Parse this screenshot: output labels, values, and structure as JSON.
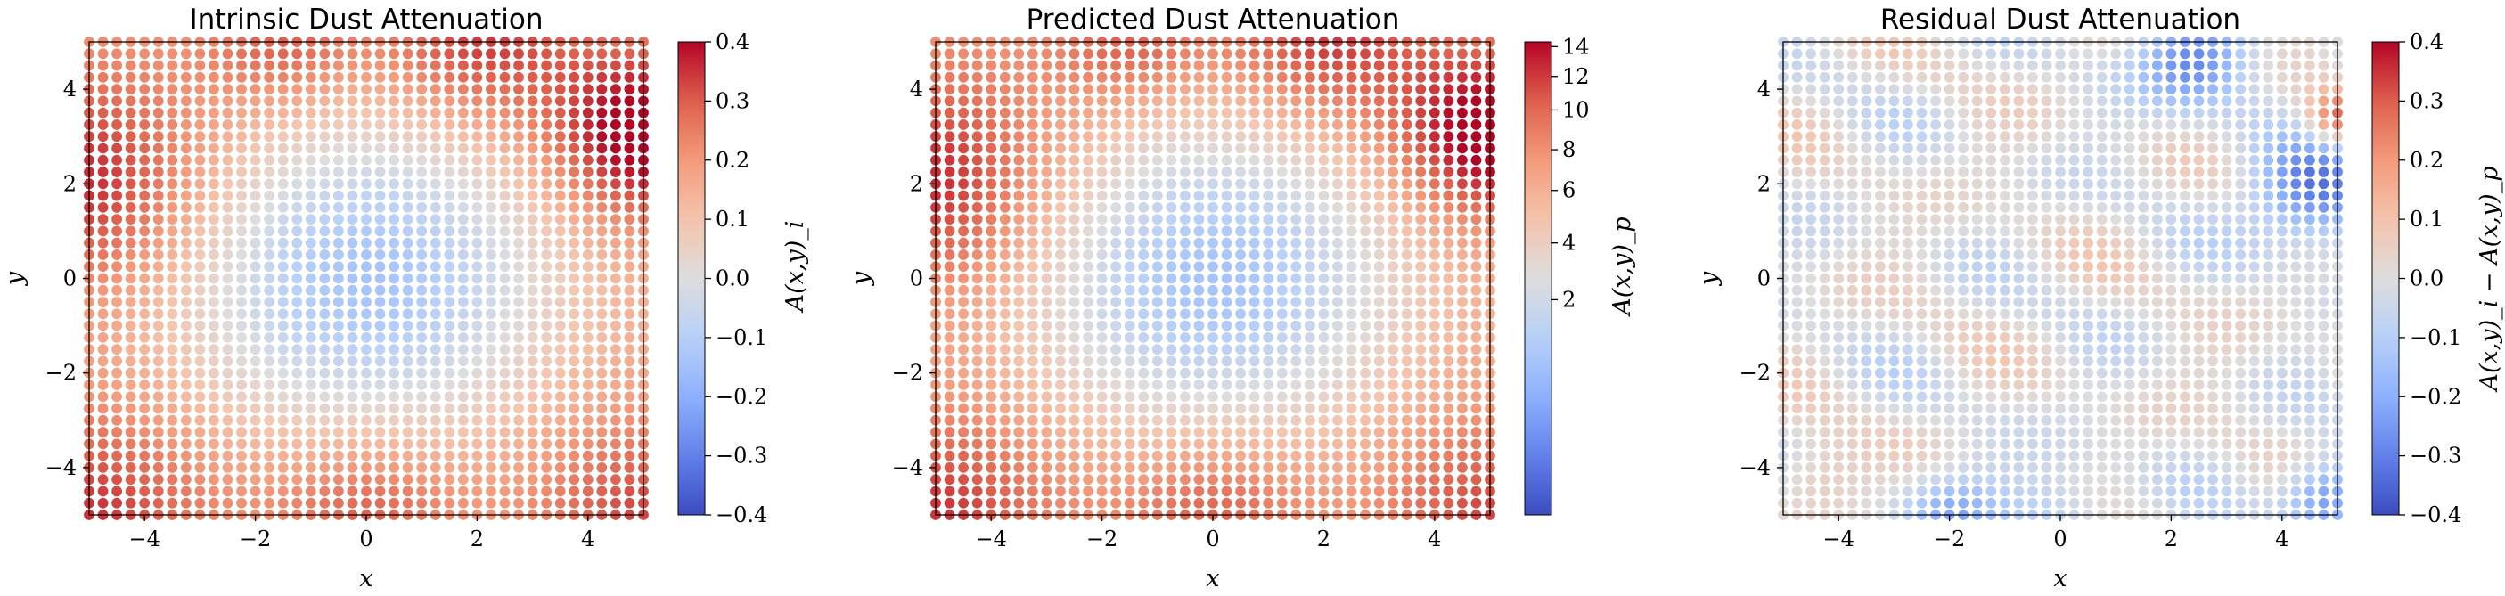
{
  "chart_data": [
    {
      "type": "scatter",
      "title": "Intrinsic Dust Attenuation",
      "xlabel": "x",
      "ylabel": "y",
      "xlim": [
        -5,
        5
      ],
      "ylim": [
        -5,
        5
      ],
      "xticks": [
        -4,
        -2,
        0,
        2,
        4
      ],
      "yticks": [
        -4,
        -2,
        0,
        2,
        4
      ],
      "xtick_labels": [
        "−4",
        "−2",
        "0",
        "2",
        "4"
      ],
      "ytick_labels": [
        "−4",
        "−2",
        "0",
        "2",
        "4"
      ],
      "grid": "41 x 41 regular points from -5 to 5",
      "field": "intrinsic",
      "colormap": "coolwarm",
      "colorbar": {
        "label": "A(x,y)_i",
        "scale": "linear",
        "range": [
          -0.4,
          0.4
        ],
        "ticks": [
          -0.4,
          -0.3,
          -0.2,
          -0.1,
          0.0,
          0.1,
          0.2,
          0.3,
          0.4
        ],
        "tick_labels": [
          "−0.4",
          "−0.3",
          "−0.2",
          "−0.1",
          "0.0",
          "0.1",
          "0.2",
          "0.3",
          "0.4"
        ]
      }
    },
    {
      "type": "scatter",
      "title": "Predicted Dust Attenuation",
      "xlabel": "x",
      "ylabel": "y",
      "xlim": [
        -5,
        5
      ],
      "ylim": [
        -5,
        5
      ],
      "xticks": [
        -4,
        -2,
        0,
        2,
        4
      ],
      "yticks": [
        -4,
        -2,
        0,
        2,
        4
      ],
      "xtick_labels": [
        "−4",
        "−2",
        "0",
        "2",
        "4"
      ],
      "ytick_labels": [
        "−4",
        "−2",
        "0",
        "2",
        "4"
      ],
      "grid": "41 x 41 regular points from -5 to 5",
      "field": "predicted",
      "colormap": "coolwarm",
      "colorbar": {
        "label": "A(x,y)_p",
        "scale": "nonlinear",
        "ticks": [
          2,
          4,
          6,
          8,
          10,
          12,
          14
        ],
        "tick_labels": [
          "2",
          "4",
          "6",
          "8",
          "10",
          "12",
          "14"
        ]
      }
    },
    {
      "type": "scatter",
      "title": "Residual Dust Attenuation",
      "xlabel": "x",
      "ylabel": "y",
      "xlim": [
        -5,
        5
      ],
      "ylim": [
        -5,
        5
      ],
      "xticks": [
        -4,
        -2,
        0,
        2,
        4
      ],
      "yticks": [
        -4,
        -2,
        0,
        2,
        4
      ],
      "xtick_labels": [
        "−4",
        "−2",
        "0",
        "2",
        "4"
      ],
      "ytick_labels": [
        "−4",
        "−2",
        "0",
        "2",
        "4"
      ],
      "grid": "41 x 41 regular points from -5 to 5",
      "field": "residual",
      "colormap": "coolwarm",
      "colorbar": {
        "label": "A(x,y)_i − A(x,y)_p",
        "scale": "linear",
        "range": [
          -0.4,
          0.4
        ],
        "ticks": [
          -0.4,
          -0.3,
          -0.2,
          -0.1,
          0.0,
          0.1,
          0.2,
          0.3,
          0.4
        ],
        "tick_labels": [
          "−0.4",
          "−0.3",
          "−0.2",
          "−0.1",
          "0.0",
          "0.1",
          "0.2",
          "0.3",
          "0.4"
        ]
      }
    }
  ]
}
